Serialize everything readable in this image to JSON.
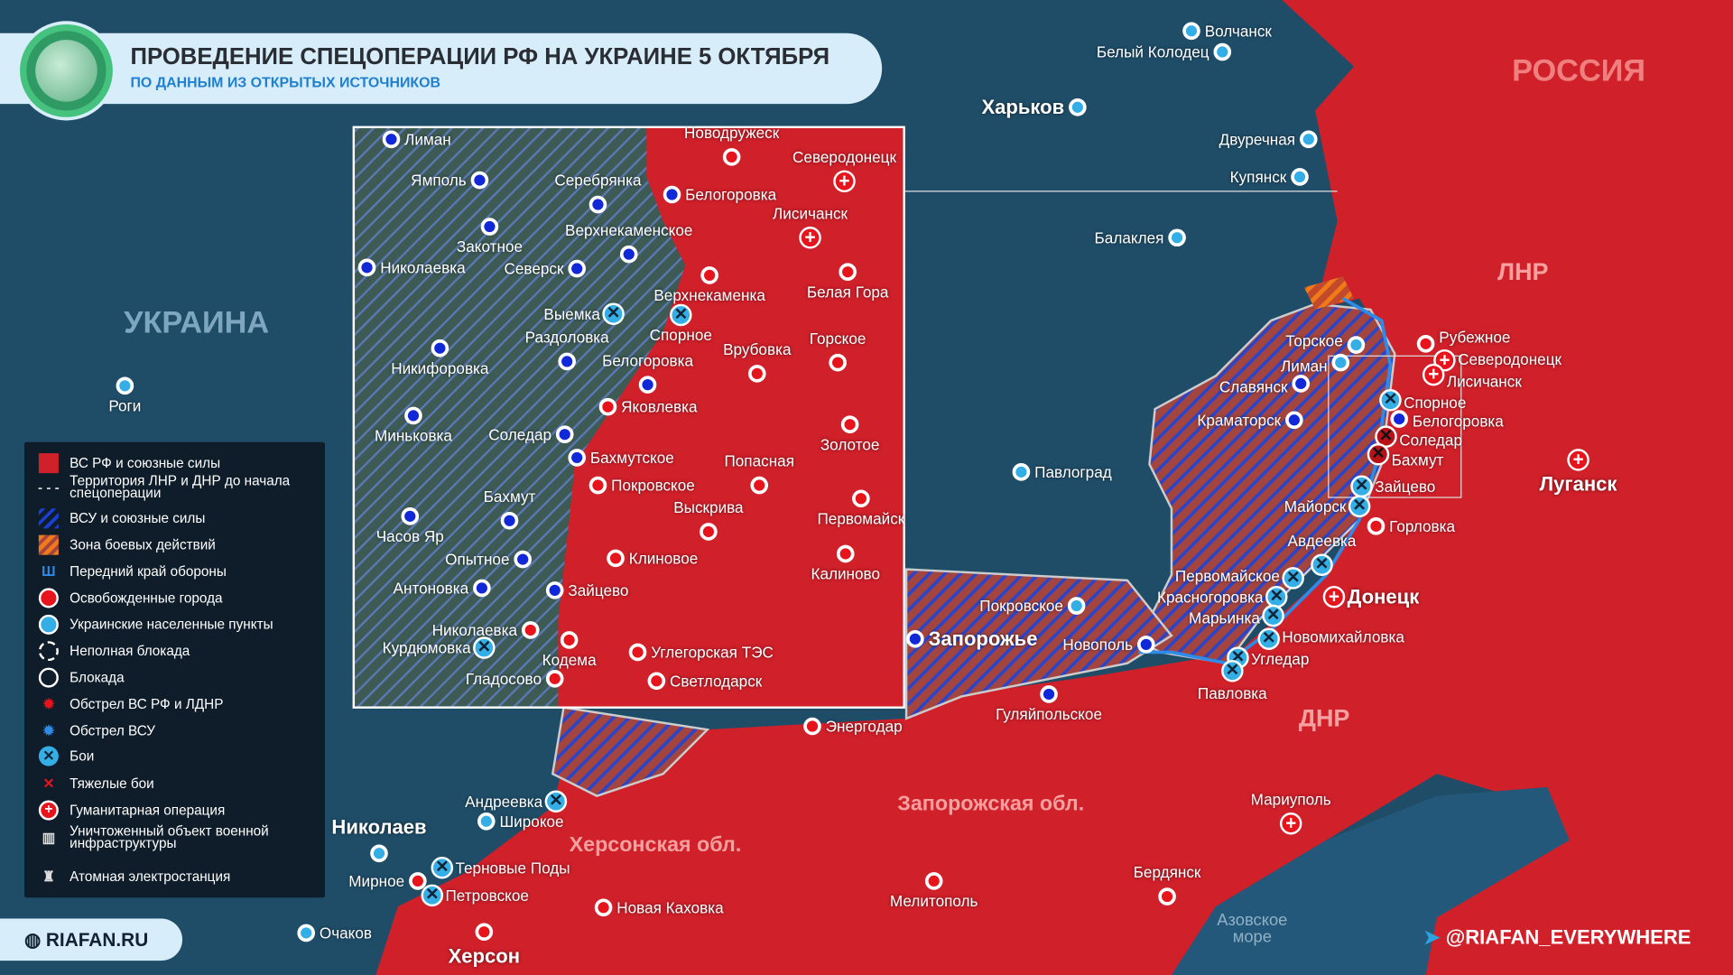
{
  "header": {
    "title": "ПРОВЕДЕНИЕ СПЕЦОПЕРАЦИИ РФ НА УКРАИНЕ 5 ОКТЯБРЯ",
    "subtitle": "ПО ДАННЫМ ИЗ ОТКРЫТЫХ ИСТОЧНИКОВ"
  },
  "colors": {
    "rf": "#d0202a",
    "ua_hatch": "#1b3fd0",
    "combat": "#e0621a",
    "ua_city": "#33aee6",
    "liberated": "#e8141c",
    "sea": "#1f4d68",
    "header_bg": "#d7eefa",
    "subtitle": "#1f7fd0"
  },
  "regions": [
    "РОССИЯ",
    "УКРАИНА",
    "ЛНР",
    "ДНР",
    "Запорожская обл.",
    "Херсонская обл.",
    "Азовское море"
  ],
  "cities": [
    {
      "name": "Волчанск",
      "type": "ua"
    },
    {
      "name": "Белый Колодец",
      "type": "ua"
    },
    {
      "name": "Харьков",
      "type": "ua"
    },
    {
      "name": "Двуречная",
      "type": "ua"
    },
    {
      "name": "Купянск",
      "type": "ua"
    },
    {
      "name": "Балаклея",
      "type": "ua"
    },
    {
      "name": "Роги",
      "type": "ua"
    },
    {
      "name": "Павлоград",
      "type": "ua"
    },
    {
      "name": "Торское",
      "type": "ua"
    },
    {
      "name": "Лиман",
      "type": "ua"
    },
    {
      "name": "Славянск",
      "type": "blue"
    },
    {
      "name": "Краматорск",
      "type": "blue"
    },
    {
      "name": "Рубежное",
      "type": "red"
    },
    {
      "name": "Северодонецк",
      "type": "hum"
    },
    {
      "name": "Лисичанск",
      "type": "hum"
    },
    {
      "name": "Спорное",
      "type": "battle"
    },
    {
      "name": "Белогоровка",
      "type": "blue"
    },
    {
      "name": "Соледар",
      "type": "heavy"
    },
    {
      "name": "Бахмут",
      "type": "heavy"
    },
    {
      "name": "Майорск",
      "type": "battle"
    },
    {
      "name": "Зайцево",
      "type": "battle"
    },
    {
      "name": "Горловка",
      "type": "red"
    },
    {
      "name": "Авдеевка",
      "type": "battle"
    },
    {
      "name": "Первомайское",
      "type": "battle"
    },
    {
      "name": "Красногоровка",
      "type": "battle"
    },
    {
      "name": "Марьинка",
      "type": "battle"
    },
    {
      "name": "Новомихайловка",
      "type": "battle"
    },
    {
      "name": "Угледар",
      "type": "battle"
    },
    {
      "name": "Павловка",
      "type": "battle"
    },
    {
      "name": "Донецк",
      "type": "hum"
    },
    {
      "name": "Луганск",
      "type": "hum"
    },
    {
      "name": "Покровское",
      "type": "ua"
    },
    {
      "name": "Запорожье",
      "type": "blue"
    },
    {
      "name": "Новополь",
      "type": "blue"
    },
    {
      "name": "Гуляйпольское",
      "type": "blue"
    },
    {
      "name": "Энергодар",
      "type": "red"
    },
    {
      "name": "Андреевка",
      "type": "battle"
    },
    {
      "name": "Широкое",
      "type": "ua"
    },
    {
      "name": "Николаев",
      "type": "ua"
    },
    {
      "name": "Мирное",
      "type": "red"
    },
    {
      "name": "Терновые Поды",
      "type": "battle"
    },
    {
      "name": "Петровское",
      "type": "battle"
    },
    {
      "name": "Новая Каховка",
      "type": "red"
    },
    {
      "name": "Очаков",
      "type": "ua"
    },
    {
      "name": "Херсон",
      "type": "red"
    },
    {
      "name": "Мелитополь",
      "type": "red"
    },
    {
      "name": "Бердянск",
      "type": "red"
    },
    {
      "name": "Мариуполь",
      "type": "hum"
    }
  ],
  "inset_cities": [
    {
      "name": "Лиман",
      "type": "blue"
    },
    {
      "name": "Ямполь",
      "type": "blue"
    },
    {
      "name": "Серебрянка",
      "type": "blue"
    },
    {
      "name": "Белогоровка",
      "type": "blue"
    },
    {
      "name": "Новодружеск",
      "type": "red"
    },
    {
      "name": "Северодонецк",
      "type": "hum"
    },
    {
      "name": "Лисичанск",
      "type": "hum"
    },
    {
      "name": "Закотное",
      "type": "blue"
    },
    {
      "name": "Верхнекаменское",
      "type": "blue"
    },
    {
      "name": "Николаевка",
      "type": "blue"
    },
    {
      "name": "Северск",
      "type": "blue"
    },
    {
      "name": "Верхнекаменка",
      "type": "red"
    },
    {
      "name": "Белая Гора",
      "type": "red"
    },
    {
      "name": "Выемка",
      "type": "battle"
    },
    {
      "name": "Спорное",
      "type": "battle"
    },
    {
      "name": "Раздоловка",
      "type": "blue"
    },
    {
      "name": "Никифоровка",
      "type": "blue"
    },
    {
      "name": "Белогоровка",
      "type": "blue"
    },
    {
      "name": "Врубовка",
      "type": "red"
    },
    {
      "name": "Горское",
      "type": "red"
    },
    {
      "name": "Яковлевка",
      "type": "red"
    },
    {
      "name": "Миньковка",
      "type": "blue"
    },
    {
      "name": "Соледар",
      "type": "blue"
    },
    {
      "name": "Бахмутское",
      "type": "blue"
    },
    {
      "name": "Золотое",
      "type": "red"
    },
    {
      "name": "Попасная",
      "type": "red"
    },
    {
      "name": "Покровское",
      "type": "red"
    },
    {
      "name": "Бахмут",
      "type": "blue"
    },
    {
      "name": "Часов Яр",
      "type": "blue"
    },
    {
      "name": "Выскрива",
      "type": "red"
    },
    {
      "name": "Первомайск",
      "type": "red"
    },
    {
      "name": "Опытное",
      "type": "blue"
    },
    {
      "name": "Клиновое",
      "type": "red"
    },
    {
      "name": "Калиново",
      "type": "red"
    },
    {
      "name": "Антоновка",
      "type": "blue"
    },
    {
      "name": "Зайцево",
      "type": "blue"
    },
    {
      "name": "Николаевка",
      "type": "red"
    },
    {
      "name": "Кодема",
      "type": "red"
    },
    {
      "name": "Курдюмовка",
      "type": "battle"
    },
    {
      "name": "Углегорская ТЭС",
      "type": "red"
    },
    {
      "name": "Гладосово",
      "type": "red"
    },
    {
      "name": "Светлодарск",
      "type": "red"
    }
  ],
  "legend": [
    {
      "label": "ВС РФ и союзные силы",
      "icon": "red-square"
    },
    {
      "label": "Территория ЛНР и ДНР до начала спецоперации",
      "icon": "dashed-line"
    },
    {
      "label": "ВСУ и союзные силы",
      "icon": "blue-hatch"
    },
    {
      "label": "Зона боевых действий",
      "icon": "orange-hatch"
    },
    {
      "label": "Передний край обороны",
      "icon": "defense-line"
    },
    {
      "label": "Освобожденные города",
      "icon": "red-dot"
    },
    {
      "label": "Украинские населенные пункты",
      "icon": "blue-dot"
    },
    {
      "label": "Неполная блокада",
      "icon": "dashed-circle"
    },
    {
      "label": "Блокада",
      "icon": "circle"
    },
    {
      "label": "Обстрел ВС РФ и ЛДНР",
      "icon": "red-explosion"
    },
    {
      "label": "Обстрел ВСУ",
      "icon": "blue-explosion"
    },
    {
      "label": "Бои",
      "icon": "battle"
    },
    {
      "label": "Тяжелые бои",
      "icon": "heavy-battle"
    },
    {
      "label": "Гуманитарная операция",
      "icon": "humanitarian-cross"
    },
    {
      "label": "Уничтоженный объект военной инфраструктуры",
      "icon": "destroyed-object"
    },
    {
      "label": "Атомная электростанция",
      "icon": "nuclear-plant"
    }
  ],
  "footer": {
    "site": "RIAFAN.RU",
    "telegram": "@RIAFAN_EVERYWHERE"
  }
}
